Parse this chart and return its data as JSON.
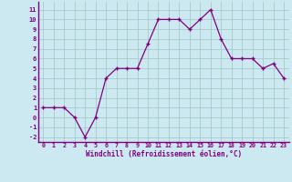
{
  "x": [
    0,
    1,
    2,
    3,
    4,
    5,
    6,
    7,
    8,
    9,
    10,
    11,
    12,
    13,
    14,
    15,
    16,
    17,
    18,
    19,
    20,
    21,
    22,
    23
  ],
  "y": [
    1,
    1,
    1,
    0,
    -2,
    0,
    4,
    5,
    5,
    5,
    7.5,
    10,
    10,
    10,
    9,
    10,
    11,
    8,
    6,
    6,
    6,
    5,
    5.5,
    4
  ],
  "line_color": "#800080",
  "marker_color": "#800080",
  "bg_color": "#cce8f0",
  "grid_color": "#a8ccc8",
  "xlabel": "Windchill (Refroidissement éolien,°C)",
  "xlabel_color": "#800080",
  "tick_color": "#800080",
  "ylim": [
    -2.5,
    11.8
  ],
  "xlim": [
    -0.5,
    23.5
  ],
  "yticks": [
    -2,
    -1,
    0,
    1,
    2,
    3,
    4,
    5,
    6,
    7,
    8,
    9,
    10,
    11
  ],
  "xticks": [
    0,
    1,
    2,
    3,
    4,
    5,
    6,
    7,
    8,
    9,
    10,
    11,
    12,
    13,
    14,
    15,
    16,
    17,
    18,
    19,
    20,
    21,
    22,
    23
  ]
}
